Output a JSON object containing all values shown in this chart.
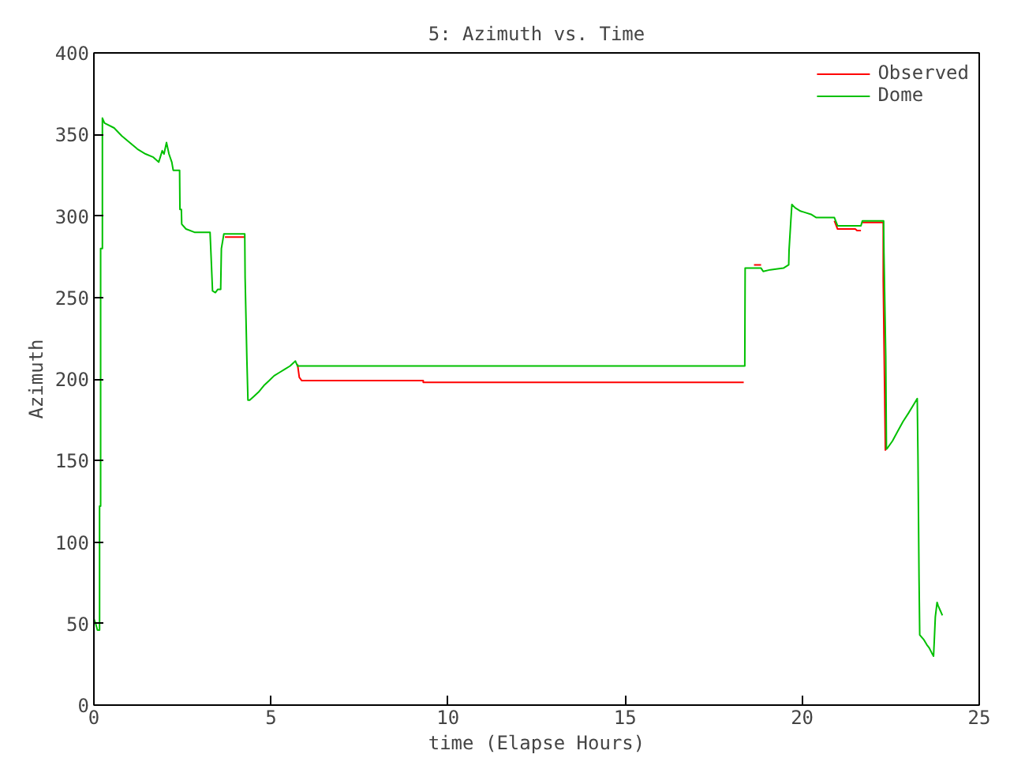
{
  "chart_data": {
    "type": "line",
    "title": "5: Azimuth vs. Time",
    "xlabel": "time (Elapse Hours)",
    "ylabel": "Azimuth",
    "xlim": [
      0,
      25
    ],
    "ylim": [
      0,
      400
    ],
    "xticks": [
      0,
      5,
      10,
      15,
      20,
      25
    ],
    "yticks": [
      0,
      50,
      100,
      150,
      200,
      250,
      300,
      350,
      400
    ],
    "grid": false,
    "legend": "top right",
    "series": [
      {
        "name": "Observed",
        "color": "#ff0000",
        "x": [
          3.7,
          4.26,
          4.3,
          5.75,
          5.8,
          5.87,
          9.3,
          9.3,
          18.35,
          18.5,
          18.64,
          18.84,
          18.9,
          20.91,
          21.0,
          21.5,
          21.55,
          21.66,
          21.68,
          21.7,
          22.29,
          22.29,
          22.33,
          22.35
        ],
        "values": [
          287,
          287,
          null,
          209,
          201,
          199,
          199,
          198,
          198,
          null,
          270,
          270,
          null,
          297,
          292,
          292,
          291,
          291,
          null,
          296,
          296,
          261,
          191,
          156
        ]
      },
      {
        "name": "Dome",
        "color": "#00c000",
        "x": [
          0,
          0.05,
          0.1,
          0.16,
          0.16,
          0.19,
          0.19,
          0.24,
          0.24,
          0.3,
          0.57,
          0.79,
          1.01,
          1.23,
          1.46,
          1.68,
          1.83,
          1.93,
          1.98,
          2.05,
          2.12,
          2.2,
          2.24,
          2.42,
          2.43,
          2.47,
          2.48,
          2.6,
          2.84,
          3.28,
          3.3,
          3.35,
          3.43,
          3.5,
          3.58,
          3.6,
          3.67,
          4.26,
          4.27,
          4.32,
          4.35,
          4.4,
          4.5,
          4.65,
          4.8,
          4.95,
          5.09,
          5.24,
          5.39,
          5.54,
          5.69,
          5.75,
          18.38,
          18.39,
          18.84,
          18.9,
          19.1,
          19.47,
          19.62,
          19.63,
          19.68,
          19.71,
          19.8,
          19.95,
          20.1,
          20.25,
          20.4,
          20.91,
          21.0,
          21.66,
          21.7,
          22.3,
          22.31,
          22.36,
          22.38,
          22.42,
          22.55,
          22.7,
          22.85,
          23.0,
          23.14,
          23.25,
          23.27,
          23.3,
          23.32,
          23.44,
          23.52,
          23.59,
          23.66,
          23.71,
          23.73,
          23.76,
          23.81,
          23.84,
          23.9,
          23.96
        ],
        "values": [
          53,
          50,
          46,
          46,
          122,
          122,
          280,
          280,
          360,
          357,
          354,
          349,
          345,
          341,
          338,
          336,
          333,
          340,
          338,
          345,
          338,
          333,
          328,
          328,
          304,
          304,
          295,
          292,
          290,
          290,
          280,
          254,
          253,
          255,
          255,
          280,
          289,
          289,
          262,
          212,
          187,
          187,
          189,
          192,
          196,
          199,
          202,
          204,
          206,
          208,
          211,
          208,
          208,
          268,
          268,
          266,
          267,
          268,
          270,
          279,
          297,
          307,
          305,
          303,
          302,
          301,
          299,
          299,
          294,
          294,
          297,
          297,
          277,
          214,
          157,
          158,
          162,
          168,
          174,
          179,
          184,
          188,
          153,
          78,
          43,
          40,
          37,
          35,
          32,
          30,
          39,
          54,
          63,
          61,
          58,
          55
        ]
      }
    ]
  }
}
